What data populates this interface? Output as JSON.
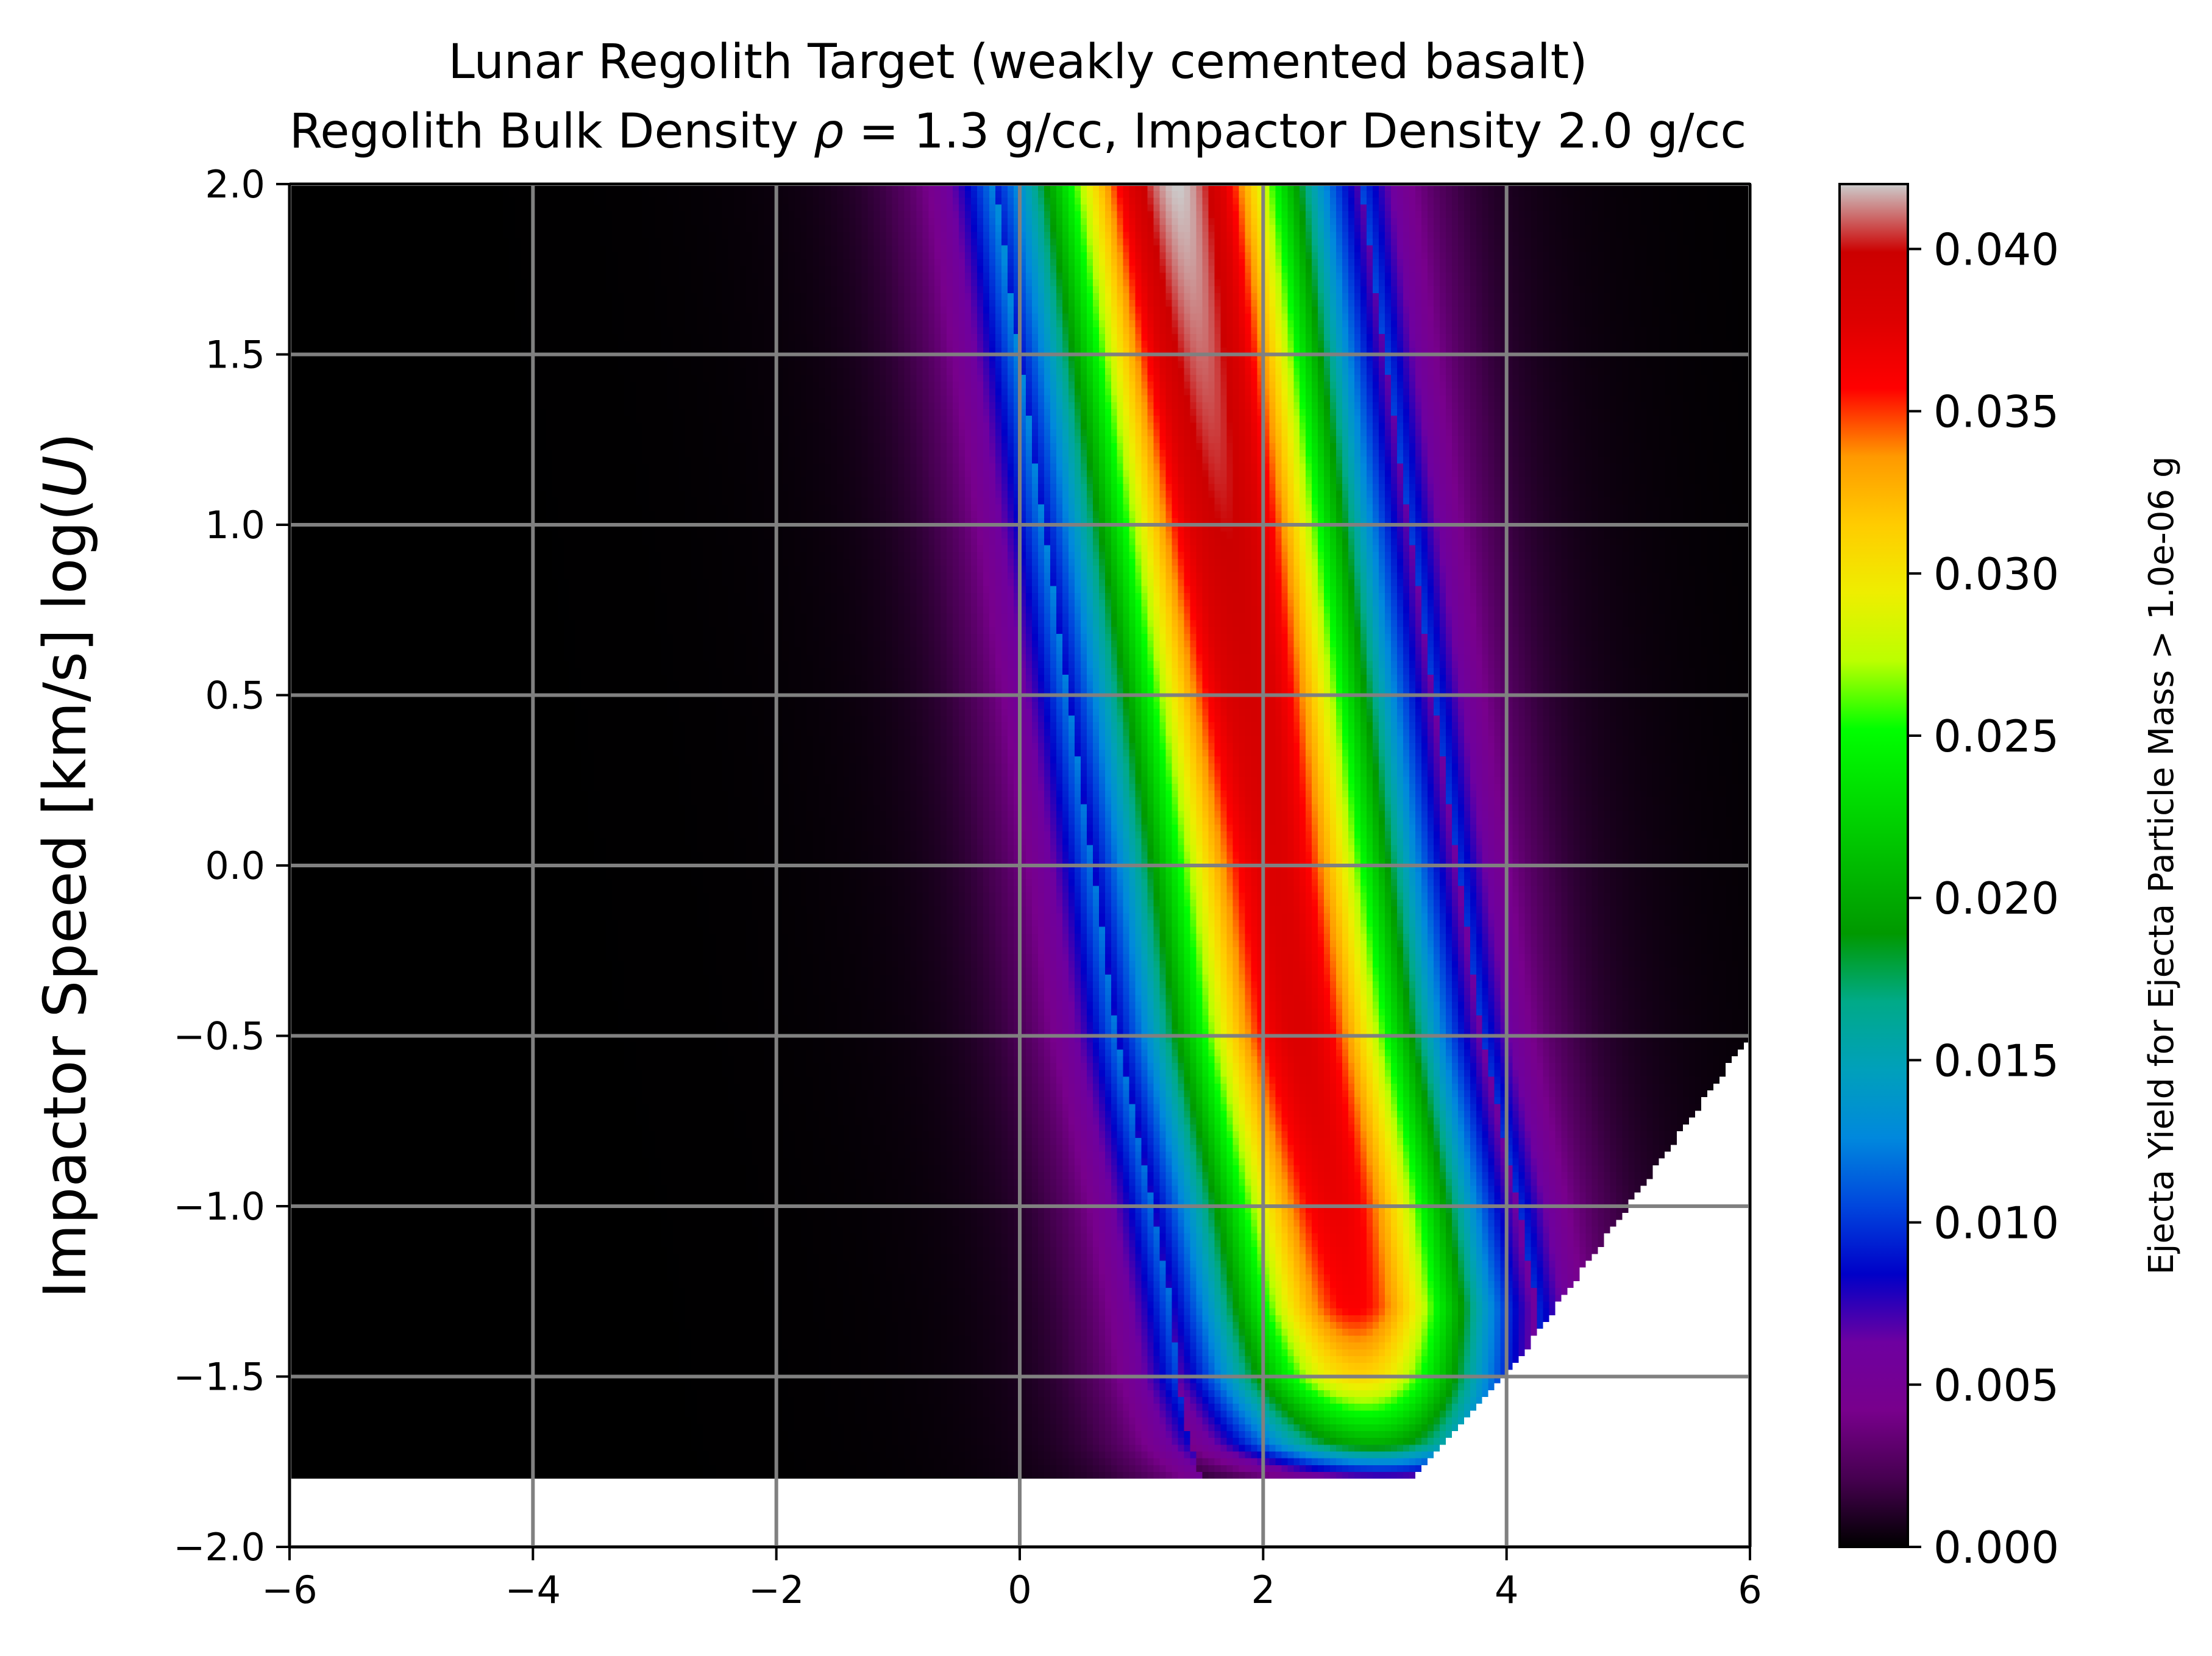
{
  "chart_data": {
    "type": "heatmap",
    "title_line1": "Lunar Regolith Target (weakly cemented basalt)",
    "title_line2_prefix": "Regolith Bulk Density ",
    "title_line2_rho": "ρ",
    "title_line2_suffix": " = 1.3 g/cc, Impactor Density 2.0 g/cc",
    "xlabel": "",
    "ylabel_prefix": "Impactor Speed [km/s] log(",
    "ylabel_var": "U",
    "ylabel_suffix": ")",
    "xlim": [
      -6,
      6
    ],
    "ylim": [
      -2,
      2
    ],
    "grid": true,
    "x_ticks": [
      -6,
      -4,
      -2,
      0,
      2,
      4,
      6
    ],
    "x_tick_labels": [
      "−6",
      "−4",
      "−2",
      "0",
      "2",
      "4",
      "6"
    ],
    "y_ticks": [
      -2.0,
      -1.5,
      -1.0,
      -0.5,
      0.0,
      0.5,
      1.0,
      1.5,
      2.0
    ],
    "y_tick_labels": [
      "−2.0",
      "−1.5",
      "−1.0",
      "−0.5",
      "0.0",
      "0.5",
      "1.0",
      "1.5",
      "2.0"
    ],
    "data_y_min": -1.8,
    "colorbar": {
      "label": "Ejecta Yield for Ejecta Particle Mass > 1.0e-06 g",
      "range": [
        0,
        0.042
      ],
      "ticks": [
        0.0,
        0.005,
        0.01,
        0.015,
        0.02,
        0.025,
        0.03,
        0.035,
        0.04
      ],
      "tick_labels": [
        "0.000",
        "0.005",
        "0.010",
        "0.015",
        "0.020",
        "0.025",
        "0.030",
        "0.035",
        "0.040"
      ],
      "colormap": "nipy_spectral"
    },
    "ridge": {
      "y": [
        2.0,
        1.5,
        1.0,
        0.5,
        0.0,
        -0.5,
        -1.0,
        -1.3,
        -1.5,
        -1.7,
        -1.8
      ],
      "center_x": [
        1.3,
        1.5,
        1.7,
        1.9,
        2.1,
        2.3,
        2.6,
        2.75,
        2.8,
        2.9,
        3.0
      ],
      "peak_value": [
        0.042,
        0.041,
        0.04,
        0.039,
        0.038,
        0.038,
        0.037,
        0.036,
        0.031,
        0.02,
        0.006
      ]
    },
    "lower_right_boundary": {
      "y": [
        -0.5,
        -1.0,
        -1.5,
        -1.8
      ],
      "x_max": [
        6.0,
        5.0,
        4.0,
        3.2
      ]
    }
  }
}
